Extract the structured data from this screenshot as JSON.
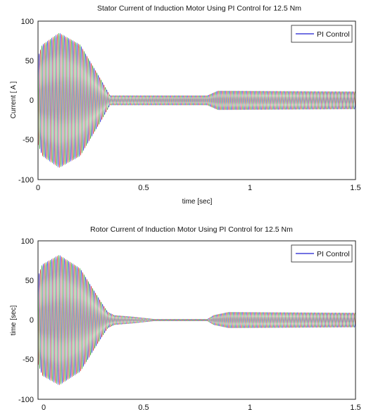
{
  "chart_data": [
    {
      "type": "line",
      "title": "Stator Current of Induction Motor Using PI Control for 12.5 Nm",
      "xlabel": "time [sec]",
      "ylabel": "Current [ A ]",
      "xlim": [
        0,
        1.5
      ],
      "ylim": [
        -100,
        100
      ],
      "xticks": [
        "0",
        "0.5",
        "1",
        "1.5"
      ],
      "yticks": [
        "100",
        "50",
        "0",
        "-50",
        "-100"
      ],
      "grid": false,
      "legend_position": "top-right",
      "series": [
        {
          "name": "PI Control",
          "phases": 3,
          "description_of_envelope": "three-phase sinusoidal currents",
          "envelope_time": [
            0,
            0.02,
            0.1,
            0.2,
            0.3,
            0.34,
            0.8,
            0.85,
            1.5
          ],
          "envelope_amplitude": [
            55,
            70,
            85,
            70,
            25,
            6,
            6,
            12,
            11
          ],
          "colors": [
            "#1f1fd0",
            "#d01f1f",
            "#1f9f1f"
          ]
        }
      ]
    },
    {
      "type": "line",
      "title": "Rotor Current of Induction Motor Using PI Control for 12.5 Nm",
      "xlabel": "",
      "ylabel": "time [sec]",
      "xlim": [
        0,
        1.5
      ],
      "ylim": [
        -100,
        100
      ],
      "xticks": [
        "0",
        "0.5",
        "1",
        "1.5"
      ],
      "yticks": [
        "100",
        "50",
        "0",
        "-50",
        "-100"
      ],
      "grid": false,
      "legend_position": "top-right",
      "series": [
        {
          "name": "PI Control",
          "phases": 3,
          "envelope_time": [
            0,
            0.02,
            0.1,
            0.2,
            0.3,
            0.33,
            0.36,
            0.45,
            0.55,
            0.8,
            0.83,
            0.9,
            1.5
          ],
          "envelope_amplitude": [
            55,
            70,
            82,
            65,
            22,
            10,
            6,
            4,
            1,
            1,
            6,
            10,
            9
          ],
          "colors": [
            "#1f1fd0",
            "#d01f1f",
            "#1f9f1f"
          ]
        }
      ]
    }
  ]
}
